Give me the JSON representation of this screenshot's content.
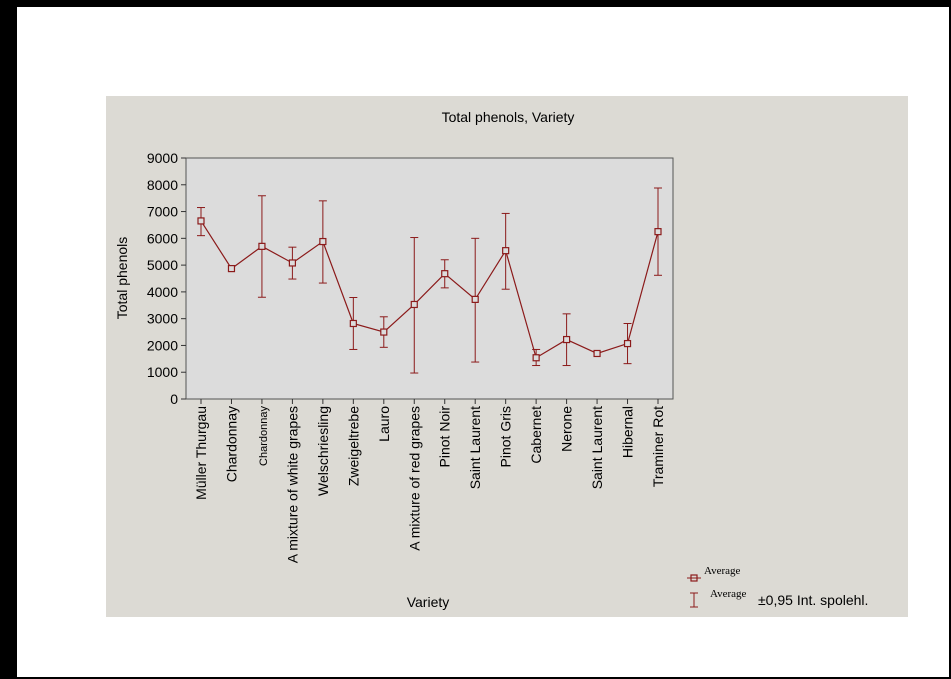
{
  "chart_data": {
    "type": "line",
    "title": "Total phenols, Variety",
    "xlabel": "Variety",
    "ylabel": "Total phenols",
    "ylim": [
      0,
      9000
    ],
    "yticks": [
      0,
      1000,
      2000,
      3000,
      4000,
      5000,
      6000,
      7000,
      8000,
      9000
    ],
    "grid": false,
    "legend_position": "bottom-right",
    "categories": [
      "Müller Thurgau",
      "Chardonnay",
      "Chardonnay",
      "A mixture of white grapes",
      "Welschriesling",
      "Zweigeltrebe",
      "Lauro",
      "A mixture of red grapes",
      "Pinot Noir",
      "Saint Laurent",
      "Pinot Gris",
      "Cabernet",
      "Nerone",
      "Saint Laurent",
      "Hibernal",
      "Traminer Rot"
    ],
    "series": [
      {
        "name": "Average",
        "values": [
          6650,
          4870,
          5700,
          5080,
          5880,
          2820,
          2500,
          3530,
          4680,
          3720,
          5540,
          1540,
          2220,
          1700,
          2070,
          6250
        ],
        "lower": [
          6100,
          4870,
          3800,
          4480,
          4330,
          1850,
          1930,
          970,
          4150,
          1380,
          4100,
          1250,
          1250,
          1700,
          1320,
          4620
        ],
        "upper": [
          7150,
          4870,
          7590,
          5670,
          7400,
          3790,
          3070,
          6030,
          5200,
          6000,
          6930,
          1850,
          3180,
          1700,
          2820,
          7880
        ]
      }
    ],
    "legend": {
      "mean_label": "Average",
      "interval_label": "Average",
      "interval_suffix": "±0,95 Int. spolehl."
    },
    "colors": {
      "series": "#8b1a1a",
      "plot_bg": "#dcdcdc",
      "panel_bg": "#dcdad4"
    }
  }
}
